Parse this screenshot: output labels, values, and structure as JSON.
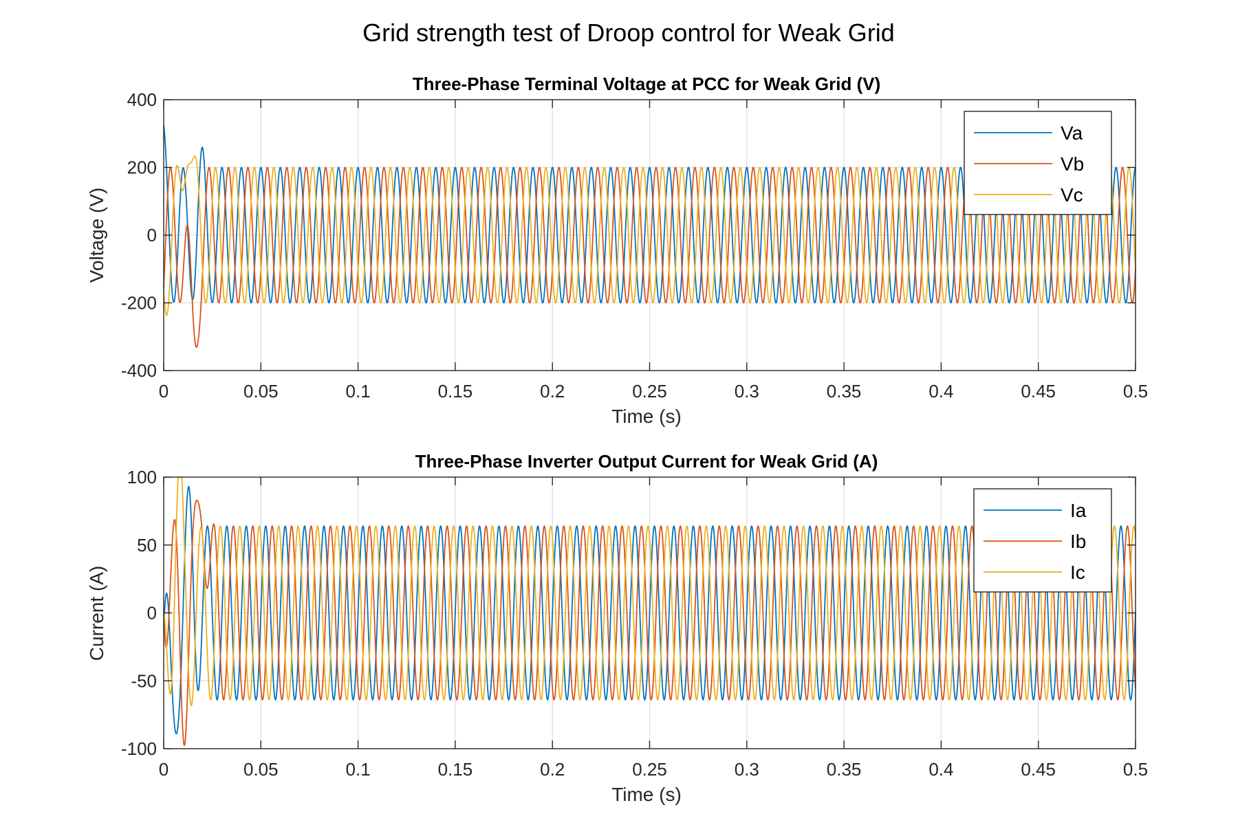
{
  "figure": {
    "title": "Grid strength test of Droop control for Weak Grid"
  },
  "chart_data": [
    {
      "type": "line",
      "title": "Three-Phase Terminal Voltage at PCC for Weak Grid (V)",
      "xlabel": "Time (s)",
      "ylabel": "Voltage (V)",
      "xlim": [
        0,
        0.5
      ],
      "ylim": [
        -400,
        400
      ],
      "xticks": [
        0,
        0.05,
        0.1,
        0.15,
        0.2,
        0.25,
        0.3,
        0.35,
        0.4,
        0.45,
        0.5
      ],
      "xtick_labels": [
        "0",
        "0.05",
        "0.1",
        "0.15",
        "0.2",
        "0.25",
        "0.3",
        "0.35",
        "0.4",
        "0.45",
        "0.5"
      ],
      "yticks": [
        -400,
        -200,
        0,
        200,
        400
      ],
      "ytick_labels": [
        "-400",
        "-200",
        "0",
        "200",
        "400"
      ],
      "grid": true,
      "legend_position": "top-right",
      "waveform": {
        "frequency_hz": 100,
        "steady_amplitude": 200,
        "phase_shift_deg": [
          0,
          -120,
          120
        ],
        "initial_values": [
          325,
          -160,
          -165
        ],
        "initial_peaks": [
          {
            "series": "Va",
            "t": 0.019,
            "value": 228
          },
          {
            "series": "Va",
            "t": 0.0065,
            "value": -130
          },
          {
            "series": "Vb",
            "t": 0.005,
            "value": 115
          },
          {
            "series": "Vb",
            "t": 0.015,
            "value": -228
          },
          {
            "series": "Vc",
            "t": 0.012,
            "value": 195
          },
          {
            "series": "Vc",
            "t": 0.002,
            "value": -228
          }
        ]
      },
      "series": [
        {
          "name": "Va",
          "color": "#0072BD"
        },
        {
          "name": "Vb",
          "color": "#D95319"
        },
        {
          "name": "Vc",
          "color": "#EDB120"
        }
      ]
    },
    {
      "type": "line",
      "title": "Three-Phase Inverter Output Current for Weak Grid (A)",
      "xlabel": "Time (s)",
      "ylabel": "Current (A)",
      "xlim": [
        0,
        0.5
      ],
      "ylim": [
        -100,
        100
      ],
      "xticks": [
        0,
        0.05,
        0.1,
        0.15,
        0.2,
        0.25,
        0.3,
        0.35,
        0.4,
        0.45,
        0.5
      ],
      "xtick_labels": [
        "0",
        "0.05",
        "0.1",
        "0.15",
        "0.2",
        "0.25",
        "0.3",
        "0.35",
        "0.4",
        "0.45",
        "0.5"
      ],
      "yticks": [
        -100,
        -50,
        0,
        50,
        100
      ],
      "ytick_labels": [
        "-100",
        "-50",
        "0",
        "50",
        "100"
      ],
      "grid": true,
      "legend_position": "top-right",
      "waveform": {
        "frequency_hz": 100,
        "steady_amplitude": 64,
        "phase_shift_deg": [
          0,
          -120,
          120
        ],
        "initial_values": [
          0,
          0,
          0
        ],
        "initial_peaks": [
          {
            "series": "Ia",
            "t": 0.004,
            "value": -45
          },
          {
            "series": "Ia",
            "t": 0.014,
            "value": 74
          },
          {
            "series": "Ib",
            "t": 0.01,
            "value": -91
          },
          {
            "series": "Ib",
            "t": 0.02,
            "value": 56
          },
          {
            "series": "Ic",
            "t": 0.007,
            "value": 85
          },
          {
            "series": "Ic",
            "t": 0.015,
            "value": -60
          }
        ]
      },
      "series": [
        {
          "name": "Ia",
          "color": "#0072BD"
        },
        {
          "name": "Ib",
          "color": "#D95319"
        },
        {
          "name": "Ic",
          "color": "#EDB120"
        }
      ]
    }
  ]
}
